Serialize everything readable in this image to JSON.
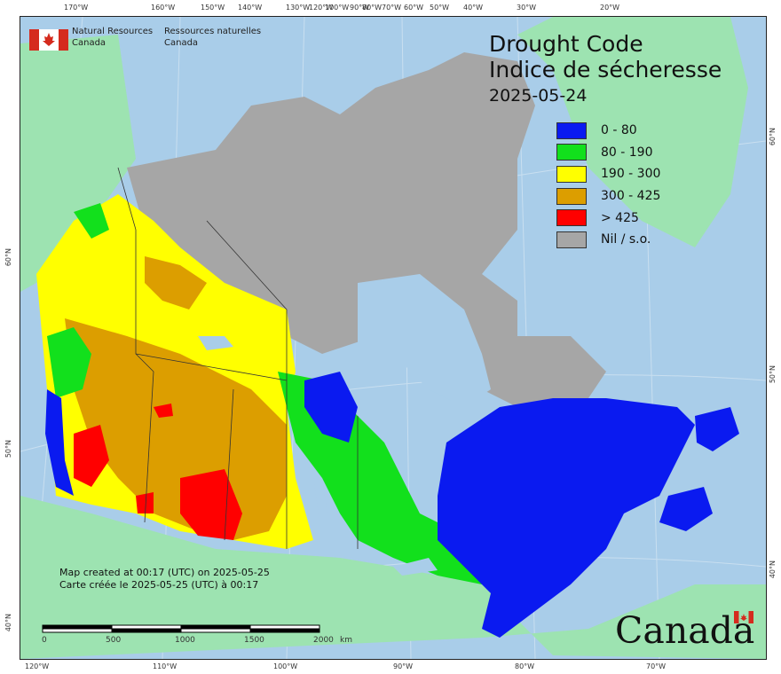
{
  "title_en": "Drought Code",
  "title_fr": "Indice de sécheresse",
  "date": "2025-05-24",
  "agency": {
    "en_line1": "Natural Resources",
    "en_line2": "Canada",
    "fr_line1": "Ressources naturelles",
    "fr_line2": "Canada"
  },
  "legend": [
    {
      "label": "0 - 80",
      "color": "#0a1af0"
    },
    {
      "label": "80 - 190",
      "color": "#12e01c"
    },
    {
      "label": "190 - 300",
      "color": "#ffff00"
    },
    {
      "label": "300 - 425",
      "color": "#dc9e00"
    },
    {
      "label": "> 425",
      "color": "#ff0000"
    },
    {
      "label": "Nil / s.o.",
      "color": "#a6a6a6"
    }
  ],
  "created_en": "Map created at 00:17 (UTC) on 2025-05-25",
  "created_fr": "Carte créée le 2025-05-25 (UTC) à 00:17",
  "scale": {
    "labels": [
      "0",
      "500",
      "1000",
      "1500",
      "2000"
    ],
    "unit": "km"
  },
  "wordmark": "Canada",
  "top_ticks": [
    "170°W",
    "160°W",
    "150°W",
    "140°W",
    "130°W",
    "120°W",
    "100°W",
    "90°W",
    "80°W",
    "70°W",
    "60°W",
    "50°W",
    "40°W",
    "30°W",
    "20°W"
  ],
  "bottom_ticks": [
    "120°W",
    "110°W",
    "100°W",
    "90°W",
    "80°W",
    "70°W"
  ],
  "left_ticks": [
    "60°N",
    "50°N",
    "40°N"
  ],
  "right_ticks": [
    "60°N",
    "50°N",
    "40°N"
  ],
  "colors": {
    "ocean": "#a9cde9",
    "land_other": "#9de3b1",
    "nil": "#a6a6a6",
    "border": "#333333"
  }
}
